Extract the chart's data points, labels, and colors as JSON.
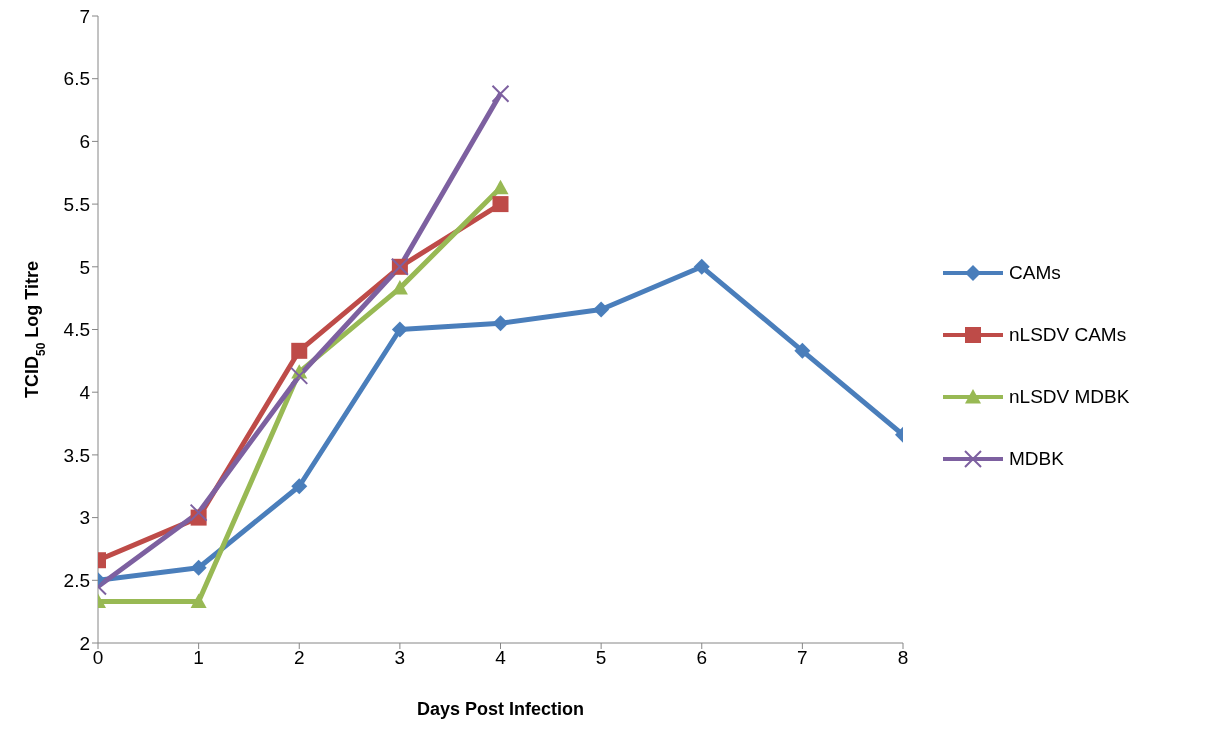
{
  "chart_data": {
    "type": "line",
    "xlabel": "Days Post Infection",
    "ylabel": "TCID$_{50}$ Log Titre",
    "x": [
      0,
      1,
      2,
      3,
      4,
      5,
      6,
      7,
      8
    ],
    "series": [
      {
        "name": "CAMs",
        "color": "#4a7ebb",
        "marker": "diamond",
        "values": [
          2.5,
          2.6,
          3.25,
          4.5,
          4.55,
          4.66,
          5.0,
          4.33,
          3.66
        ]
      },
      {
        "name": "nLSDV CAMs",
        "color": "#be4b48",
        "marker": "square",
        "x": [
          0,
          1,
          2,
          3,
          4
        ],
        "values": [
          2.66,
          3.0,
          4.33,
          5.0,
          5.5
        ]
      },
      {
        "name": "nLSDV MDBK",
        "color": "#98b954",
        "marker": "triangle",
        "x": [
          0,
          1,
          2,
          3,
          4
        ],
        "values": [
          2.33,
          2.33,
          4.16,
          4.83,
          5.63
        ]
      },
      {
        "name": "MDBK",
        "color": "#7d60a0",
        "marker": "cross",
        "x": [
          0,
          1,
          2,
          3,
          4
        ],
        "values": [
          2.45,
          3.04,
          4.13,
          5.0,
          6.38
        ]
      }
    ],
    "xlim": [
      0,
      8
    ],
    "xticks": [
      0,
      1,
      2,
      3,
      4,
      5,
      6,
      7,
      8
    ],
    "ylim": [
      2,
      7
    ],
    "yticks": [
      2,
      2.5,
      3,
      3.5,
      4,
      4.5,
      5,
      5.5,
      6,
      6.5,
      7
    ],
    "grid": false,
    "legend": "right",
    "line_style": "solid"
  }
}
